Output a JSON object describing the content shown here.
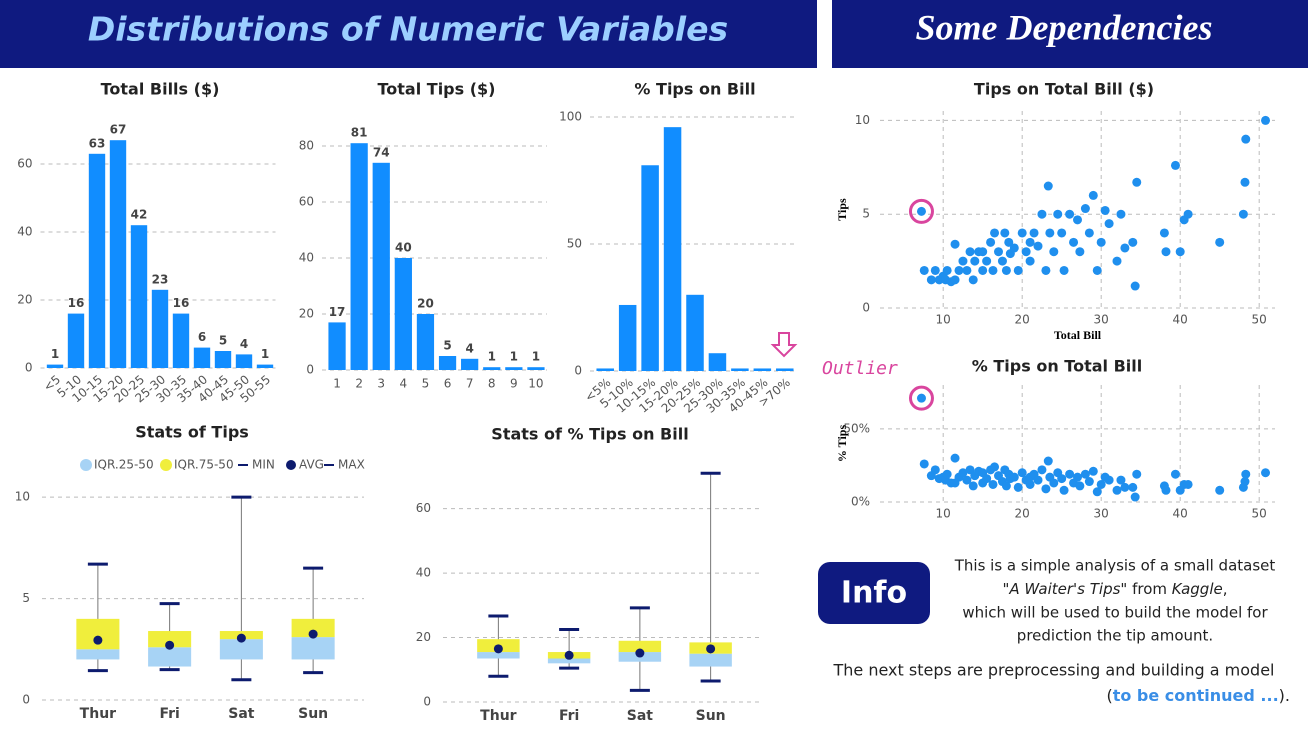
{
  "headers": {
    "left": "Distributions of Numeric Variables",
    "right": "Some Dependencies"
  },
  "annotation": "Outlier",
  "info": {
    "label": "Info",
    "lines": [
      "This is a simple analysis of a small dataset",
      "which will be used to build the model for",
      "prediction the tip amount."
    ],
    "source": [
      "\"A Waiter's Tips\"",
      " from ",
      "Kaggle",
      ","
    ],
    "next": "The next steps are preprocessing and building a model",
    "continued": [
      "(",
      "to be continued ...",
      ")."
    ]
  },
  "chart_data": [
    {
      "type": "bar",
      "title": "Total Bills ($)",
      "categories": [
        "<5",
        "5-10",
        "10-15",
        "15-20",
        "20-25",
        "25-30",
        "30-35",
        "35-40",
        "40-45",
        "45-50",
        "50-55"
      ],
      "values": [
        1,
        16,
        63,
        67,
        42,
        23,
        16,
        6,
        5,
        4,
        1
      ],
      "color": "#118dff",
      "ylim": [
        0,
        70
      ],
      "yticks": [
        0,
        20,
        40,
        60
      ],
      "grid": true
    },
    {
      "type": "bar",
      "title": "Total Tips ($)",
      "categories": [
        "1",
        "2",
        "3",
        "4",
        "5",
        "6",
        "7",
        "8",
        "9",
        "10"
      ],
      "values": [
        17,
        81,
        74,
        40,
        20,
        5,
        4,
        1,
        1,
        1
      ],
      "color": "#118dff",
      "ylim": [
        0,
        85
      ],
      "yticks": [
        0,
        20,
        40,
        60,
        80
      ],
      "grid": true
    },
    {
      "type": "bar",
      "title": "% Tips on Bill",
      "categories": [
        "<5%",
        "5-10%",
        "10-15%",
        "15-20%",
        "20-25%",
        "25-30%",
        "30-35%",
        "40-45%",
        ">70%"
      ],
      "values": [
        1,
        26,
        81,
        96,
        30,
        7,
        1,
        1,
        1
      ],
      "color": "#118dff",
      "ylim": [
        0,
        100
      ],
      "yticks": [
        0,
        50,
        100
      ],
      "grid": true
    },
    {
      "type": "box",
      "title": "Stats of Tips",
      "categories": [
        "Thur",
        "Fri",
        "Sat",
        "Sun"
      ],
      "legend": "top",
      "series": [
        {
          "name": "IQR.25-50",
          "color": "#a7d3f5",
          "values": [
            [
              2.0,
              2.5
            ],
            [
              1.65,
              2.6
            ],
            [
              2.0,
              3.0
            ],
            [
              2.0,
              3.1
            ]
          ]
        },
        {
          "name": "IQR.75-50",
          "color": "#f0ee3c",
          "values": [
            [
              2.5,
              4.0
            ],
            [
              2.6,
              3.4
            ],
            [
              3.0,
              3.4
            ],
            [
              3.1,
              4.0
            ]
          ]
        },
        {
          "name": "MIN",
          "color": "#0d1b6e",
          "values": [
            1.45,
            1.5,
            1.0,
            1.35
          ]
        },
        {
          "name": "AVG",
          "color": "#0d1b6e",
          "values": [
            2.95,
            2.7,
            3.05,
            3.25
          ]
        },
        {
          "name": "MAX",
          "color": "#0d1b6e",
          "values": [
            6.7,
            4.75,
            10,
            6.5
          ]
        }
      ],
      "ylim": [
        0,
        10.5
      ],
      "yticks": [
        0,
        5,
        10
      ],
      "grid": true
    },
    {
      "type": "box",
      "title": "Stats of % Tips on Bill",
      "categories": [
        "Thur",
        "Fri",
        "Sat",
        "Sun"
      ],
      "series": [
        {
          "name": "IQR.25-50",
          "color": "#a7d3f5",
          "values": [
            [
              13.5,
              15.5
            ],
            [
              12,
              13.5
            ],
            [
              12.5,
              15.5
            ],
            [
              11,
              15
            ]
          ]
        },
        {
          "name": "IQR.75-50",
          "color": "#f0ee3c",
          "values": [
            [
              15.5,
              19.5
            ],
            [
              13.5,
              15.5
            ],
            [
              15.5,
              19
            ],
            [
              15,
              18.5
            ]
          ]
        },
        {
          "name": "MIN",
          "color": "#0d1b6e",
          "values": [
            8,
            10.5,
            3.6,
            6.5
          ]
        },
        {
          "name": "AVG",
          "color": "#0d1b6e",
          "values": [
            16.5,
            14.5,
            15.2,
            16.5
          ]
        },
        {
          "name": "MAX",
          "color": "#0d1b6e",
          "values": [
            26.7,
            22.5,
            29.2,
            71
          ]
        }
      ],
      "ylim": [
        0,
        72
      ],
      "yticks": [
        0,
        20,
        40,
        60
      ],
      "grid": true
    },
    {
      "type": "scatter",
      "title": "Tips on Total Bill ($)",
      "x_label": "Total Bill",
      "y_label": "Tips",
      "color": "#1f8fee",
      "x": [
        7.25,
        7.6,
        8.5,
        9,
        9.5,
        10,
        10.3,
        10.5,
        11,
        11.5,
        12,
        12.5,
        11.5,
        13,
        13.4,
        13.8,
        14,
        14.5,
        15,
        15,
        15.5,
        16,
        16.3,
        16.5,
        17,
        17.5,
        17.8,
        18,
        18.3,
        18.5,
        19,
        19.5,
        20,
        20.5,
        21,
        21,
        21.5,
        22,
        22.5,
        23,
        23.3,
        23.5,
        24,
        24.5,
        25,
        25.3,
        26,
        26.5,
        27,
        27.3,
        28,
        28.5,
        29,
        29.5,
        30,
        30.5,
        31,
        32,
        32.5,
        33,
        34,
        34.5,
        34.3,
        38,
        38.2,
        39.4,
        40,
        40.5,
        41,
        45,
        48,
        48.2,
        48.3,
        50.8
      ],
      "values": [
        5.15,
        2,
        1.5,
        2,
        1.5,
        1.7,
        1.5,
        2,
        1.4,
        1.5,
        2,
        2.5,
        3.4,
        2,
        3,
        1.5,
        2.5,
        3,
        2,
        3,
        2.5,
        3.5,
        2,
        4,
        3,
        2.5,
        4,
        2,
        3.5,
        2.9,
        3.2,
        2,
        4,
        3,
        3.5,
        2.5,
        4,
        3.3,
        5,
        2,
        6.5,
        4,
        3,
        5,
        4,
        2,
        5,
        3.5,
        4.7,
        3,
        5.3,
        4,
        6,
        2,
        3.5,
        5.2,
        4.5,
        2.5,
        5,
        3.2,
        3.5,
        6.7,
        1.17,
        4,
        3,
        7.6,
        3,
        4.7,
        5,
        3.5,
        5,
        6.7,
        9,
        10
      ],
      "xlim": [
        2,
        52
      ],
      "xticks": [
        10,
        20,
        30,
        40,
        50
      ],
      "ylim": [
        0,
        10.5
      ],
      "yticks": [
        0,
        5,
        10
      ],
      "grid": true
    },
    {
      "type": "scatter",
      "title": "% Tips on Total Bill",
      "y_label": "% Tips",
      "color": "#1f8fee",
      "x": [
        7.25,
        7.6,
        8.5,
        9,
        9.5,
        10,
        10.3,
        10.5,
        11,
        11.5,
        12,
        12.5,
        11.5,
        13,
        13.4,
        13.8,
        14,
        14.5,
        15,
        15,
        15.5,
        16,
        16.3,
        16.5,
        17,
        17.5,
        17.8,
        18,
        18.3,
        18.5,
        19,
        19.5,
        20,
        20.5,
        21,
        21,
        21.5,
        22,
        22.5,
        23,
        23.3,
        23.5,
        24,
        24.5,
        25,
        25.3,
        26,
        26.5,
        27,
        27.3,
        28,
        28.5,
        29,
        29.5,
        30,
        30.5,
        31,
        32,
        32.5,
        33,
        34,
        34.5,
        34.3,
        38,
        38.2,
        39.4,
        40,
        40.5,
        41,
        45,
        48,
        48.2,
        48.3,
        50.8
      ],
      "values": [
        71,
        26,
        18,
        22,
        16,
        17,
        15,
        19,
        13,
        13,
        17,
        20,
        30,
        15,
        22,
        11,
        18,
        21,
        13,
        20,
        16,
        22,
        12,
        24,
        18,
        14,
        22,
        11,
        19,
        16,
        17,
        10,
        20,
        15,
        17,
        12,
        19,
        15,
        22,
        9,
        28,
        17,
        13,
        20,
        16,
        8,
        19,
        13,
        17,
        11,
        19,
        14,
        21,
        7,
        12,
        17,
        15,
        8,
        15,
        10,
        10,
        19,
        3.4,
        11,
        8,
        19,
        8,
        12,
        12,
        8,
        10,
        14,
        19,
        20
      ],
      "xlim": [
        2,
        52
      ],
      "xticks": [
        10,
        20,
        30,
        40,
        50
      ],
      "ylim": [
        0,
        80
      ],
      "yticks": [
        {
          "value": 0,
          "label": "0%"
        },
        {
          "value": 50,
          "label": "50%"
        }
      ],
      "grid": true
    }
  ]
}
